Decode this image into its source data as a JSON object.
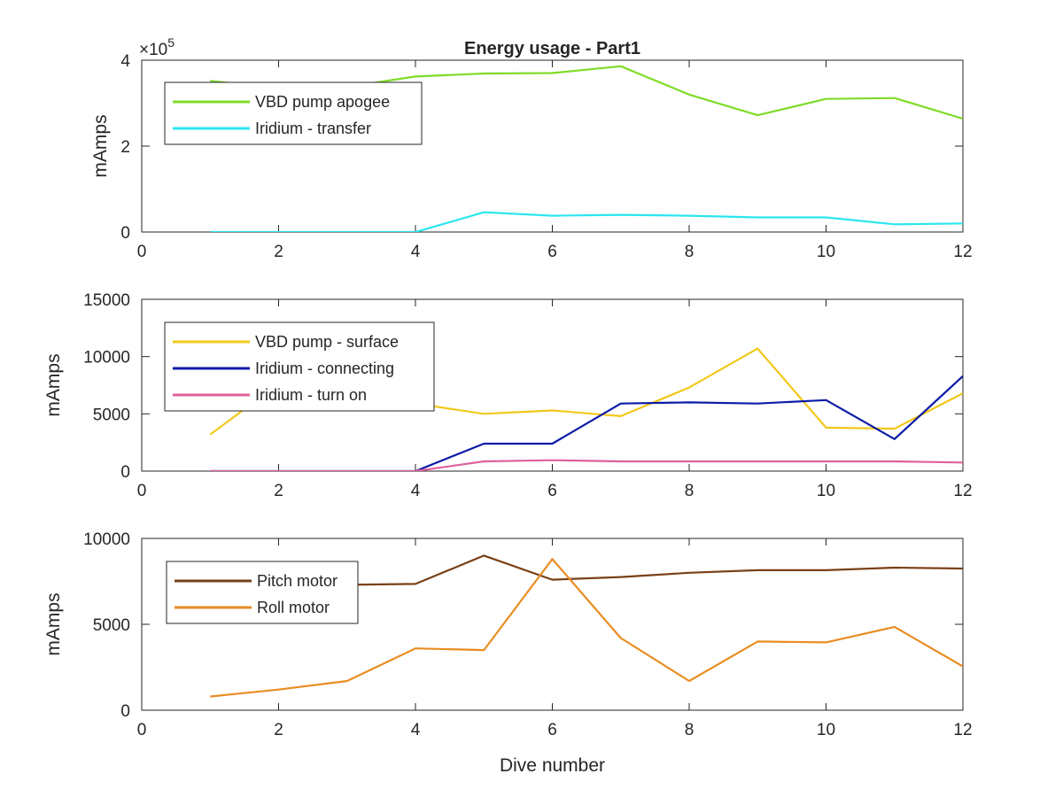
{
  "figure": {
    "title": "Energy usage - Part1",
    "xlabel": "Dive number"
  },
  "chart_data": [
    {
      "type": "line",
      "title": "Energy usage - Part1",
      "xlabel": "",
      "ylabel": "mAmps",
      "xlim": [
        0,
        12
      ],
      "ylim": [
        0,
        400000
      ],
      "xticks": [
        0,
        2,
        4,
        6,
        8,
        10,
        12
      ],
      "yticks": [
        0,
        200000,
        400000
      ],
      "ytick_labels": [
        "0",
        "2",
        "4"
      ],
      "y_exponent_prefix": "×10",
      "y_exponent_power": "5",
      "grid": false,
      "legend": "top-left",
      "x": [
        1,
        2,
        3,
        4,
        5,
        6,
        7,
        8,
        9,
        10,
        11,
        12
      ],
      "series": [
        {
          "name": "VBD pump apogee",
          "color": "#7fdc28",
          "values": [
            352000,
            335000,
            338000,
            362000,
            369000,
            370000,
            386000,
            320000,
            272000,
            310000,
            312000,
            264000
          ]
        },
        {
          "name": "Iridium - transfer",
          "color": "#2be6ef",
          "values": [
            0,
            0,
            0,
            0,
            46000,
            38000,
            40000,
            38000,
            34000,
            34000,
            18000,
            20000
          ]
        }
      ]
    },
    {
      "type": "line",
      "xlabel": "",
      "ylabel": "mAmps",
      "xlim": [
        0,
        12
      ],
      "ylim": [
        0,
        15000
      ],
      "xticks": [
        0,
        2,
        4,
        6,
        8,
        10,
        12
      ],
      "yticks": [
        0,
        5000,
        10000,
        15000
      ],
      "ytick_labels": [
        "0",
        "5000",
        "10000",
        "15000"
      ],
      "grid": false,
      "legend": "top-left",
      "x": [
        1,
        2,
        3,
        4,
        5,
        6,
        7,
        8,
        9,
        10,
        11,
        12
      ],
      "series": [
        {
          "name": "VBD pump - surface",
          "color": "#f2c81b",
          "values": [
            3200,
            7600,
            7400,
            5900,
            5000,
            5300,
            4800,
            7300,
            10700,
            3800,
            3700,
            6800
          ]
        },
        {
          "name": "Iridium - connecting",
          "color": "#0c1ca7",
          "values": [
            0,
            0,
            0,
            0,
            2400,
            2400,
            5900,
            6000,
            5900,
            6200,
            2800,
            8300
          ]
        },
        {
          "name": "Iridium - turn on",
          "color": "#e0619d",
          "values": [
            0,
            0,
            0,
            0,
            850,
            950,
            850,
            850,
            850,
            850,
            850,
            750
          ]
        }
      ]
    },
    {
      "type": "line",
      "xlabel": "Dive number",
      "ylabel": "mAmps",
      "xlim": [
        0,
        12
      ],
      "ylim": [
        0,
        10000
      ],
      "xticks": [
        0,
        2,
        4,
        6,
        8,
        10,
        12
      ],
      "yticks": [
        0,
        5000,
        10000
      ],
      "ytick_labels": [
        "0",
        "5000",
        "10000"
      ],
      "grid": false,
      "legend": "top-left",
      "x": [
        1,
        2,
        3,
        4,
        5,
        6,
        7,
        8,
        9,
        10,
        11,
        12
      ],
      "series": [
        {
          "name": "Pitch motor",
          "color": "#7a4016",
          "values": [
            7400,
            7300,
            7300,
            7350,
            9000,
            7600,
            7750,
            8000,
            8150,
            8150,
            8300,
            8250
          ]
        },
        {
          "name": "Roll motor",
          "color": "#e98d22",
          "values": [
            800,
            1200,
            1700,
            3600,
            3500,
            8800,
            4200,
            1700,
            4000,
            3950,
            4850,
            2550
          ]
        }
      ]
    }
  ]
}
